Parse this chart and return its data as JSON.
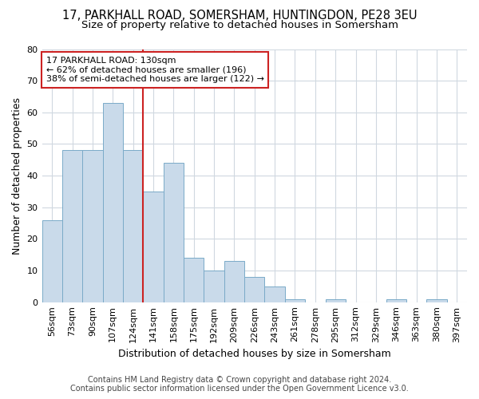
{
  "title_line1": "17, PARKHALL ROAD, SOMERSHAM, HUNTINGDON, PE28 3EU",
  "title_line2": "Size of property relative to detached houses in Somersham",
  "xlabel": "Distribution of detached houses by size in Somersham",
  "ylabel": "Number of detached properties",
  "categories": [
    "56sqm",
    "73sqm",
    "90sqm",
    "107sqm",
    "124sqm",
    "141sqm",
    "158sqm",
    "175sqm",
    "192sqm",
    "209sqm",
    "226sqm",
    "243sqm",
    "261sqm",
    "278sqm",
    "295sqm",
    "312sqm",
    "329sqm",
    "346sqm",
    "363sqm",
    "380sqm",
    "397sqm"
  ],
  "values": [
    26,
    48,
    48,
    63,
    48,
    35,
    44,
    14,
    10,
    13,
    8,
    5,
    1,
    0,
    1,
    0,
    0,
    1,
    0,
    1,
    0
  ],
  "bar_color": "#c9daea",
  "bar_edge_color": "#7aaac8",
  "vline_x_index": 4.5,
  "vline_color": "#cc2222",
  "annotation_text": "17 PARKHALL ROAD: 130sqm\n← 62% of detached houses are smaller (196)\n38% of semi-detached houses are larger (122) →",
  "annotation_box_color": "#ffffff",
  "annotation_box_edge": "#cc2222",
  "ylim": [
    0,
    80
  ],
  "yticks": [
    0,
    10,
    20,
    30,
    40,
    50,
    60,
    70,
    80
  ],
  "footer_line1": "Contains HM Land Registry data © Crown copyright and database right 2024.",
  "footer_line2": "Contains public sector information licensed under the Open Government Licence v3.0.",
  "background_color": "#ffffff",
  "plot_bg_color": "#ffffff",
  "grid_color": "#d0d8e0",
  "title_fontsize": 10.5,
  "subtitle_fontsize": 9.5,
  "axis_label_fontsize": 9,
  "tick_fontsize": 8,
  "annotation_fontsize": 8,
  "footer_fontsize": 7
}
